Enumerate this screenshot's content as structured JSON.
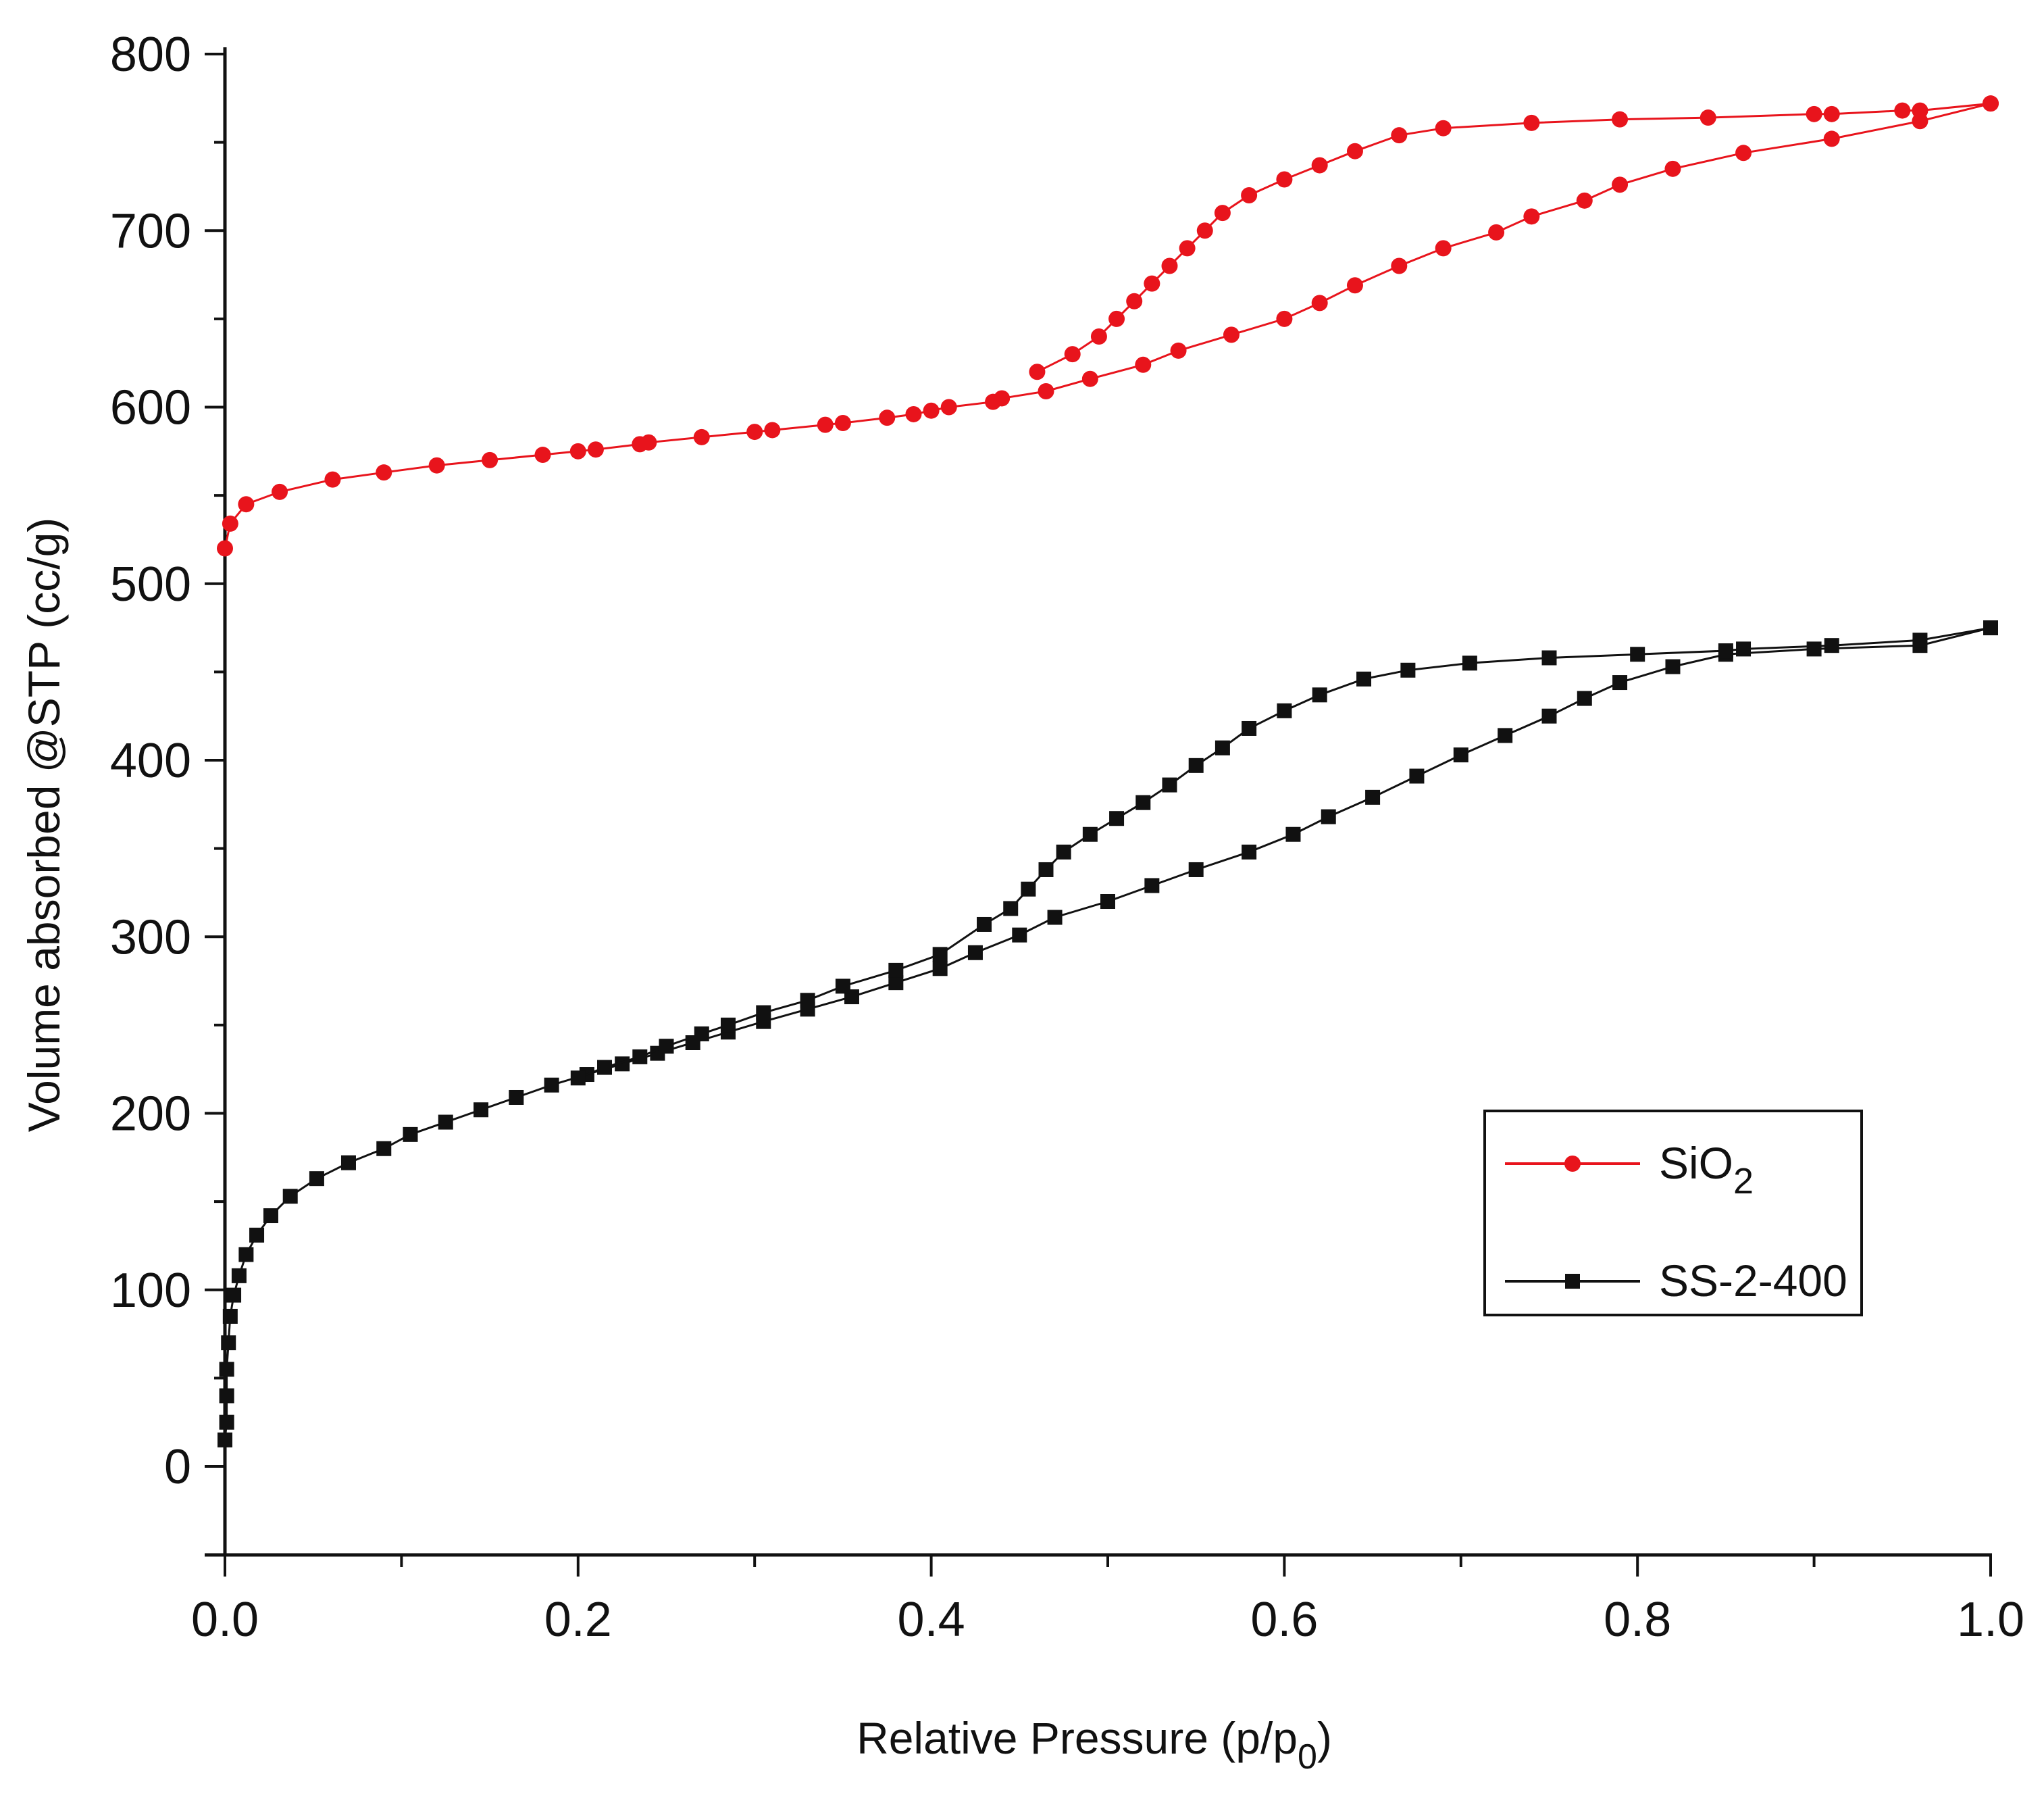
{
  "chart_data": {
    "type": "scatter",
    "title": "",
    "xlabel": "Relative Pressure (p/p0)",
    "xlabel_main": "Relative Pressure (p/p",
    "xlabel_sub": "0",
    "xlabel_close": ")",
    "ylabel": "Volume absorbed @STP (cc/g)",
    "xlim": [
      0.0,
      1.0
    ],
    "ylim": [
      -50,
      800
    ],
    "xticks": [
      "0.0",
      "0.2",
      "0.4",
      "0.6",
      "0.8",
      "1.0"
    ],
    "yticks": [
      "0",
      "100",
      "200",
      "300",
      "400",
      "500",
      "600",
      "700",
      "800"
    ],
    "grid": false,
    "legend_position": "lower-right",
    "series": [
      {
        "name": "SiO2",
        "legend_main": "SiO",
        "legend_sub": "2",
        "color": "#e8141c",
        "marker": "circle",
        "adsorption": {
          "x": [
            0.0,
            0.003,
            0.012,
            0.031,
            0.061,
            0.09,
            0.12,
            0.15,
            0.18,
            0.2,
            0.21,
            0.235,
            0.24,
            0.27,
            0.3,
            0.31,
            0.34,
            0.35,
            0.375,
            0.39,
            0.4,
            0.41,
            0.435,
            0.44,
            0.465,
            0.49,
            0.52,
            0.54,
            0.57,
            0.6,
            0.62,
            0.64,
            0.665,
            0.69,
            0.72,
            0.74,
            0.77,
            0.79,
            0.82,
            0.86,
            0.91,
            0.96,
            1.0
          ],
          "y": [
            520,
            534,
            545,
            552,
            559,
            563,
            567,
            570,
            573,
            575,
            576,
            579,
            580,
            583,
            586,
            587,
            590,
            591,
            594,
            596,
            598,
            600,
            603,
            605,
            609,
            616,
            624,
            632,
            641,
            650,
            659,
            669,
            680,
            690,
            699,
            708,
            717,
            726,
            735,
            744,
            752,
            762,
            772
          ]
        },
        "desorption": {
          "x": [
            1.0,
            0.96,
            0.95,
            0.91,
            0.9,
            0.84,
            0.79,
            0.74,
            0.69,
            0.665,
            0.64,
            0.62,
            0.6,
            0.58,
            0.565,
            0.555,
            0.545,
            0.535,
            0.525,
            0.515,
            0.505,
            0.495,
            0.48,
            0.46
          ],
          "y": [
            772,
            768,
            768,
            766,
            766,
            764,
            763,
            761,
            758,
            754,
            745,
            737,
            729,
            720,
            710,
            700,
            690,
            680,
            670,
            660,
            650,
            640,
            630,
            620
          ]
        }
      },
      {
        "name": "SS-2-400",
        "legend_main": "SS-2-400",
        "legend_sub": "",
        "color": "#111111",
        "marker": "square",
        "adsorption": {
          "x": [
            0.0,
            0.001,
            0.001,
            0.001,
            0.002,
            0.003,
            0.005,
            0.008,
            0.012,
            0.018,
            0.026,
            0.037,
            0.052,
            0.07,
            0.09,
            0.105,
            0.125,
            0.145,
            0.165,
            0.185,
            0.205,
            0.225,
            0.245,
            0.265,
            0.285,
            0.305,
            0.33,
            0.355,
            0.38,
            0.405,
            0.425,
            0.45,
            0.47,
            0.5,
            0.525,
            0.55,
            0.58,
            0.605,
            0.625,
            0.65,
            0.675,
            0.7,
            0.725,
            0.75,
            0.77,
            0.79,
            0.82,
            0.85,
            0.9,
            0.96,
            1.0
          ],
          "y": [
            15,
            25,
            40,
            55,
            70,
            85,
            97,
            108,
            120,
            131,
            142,
            153,
            163,
            172,
            180,
            188,
            195,
            202,
            209,
            216,
            222,
            228,
            234,
            240,
            246,
            252,
            259,
            266,
            274,
            282,
            291,
            301,
            311,
            320,
            329,
            338,
            348,
            358,
            368,
            379,
            391,
            403,
            414,
            425,
            435,
            444,
            453,
            460,
            463,
            465,
            475
          ]
        },
        "desorption": {
          "x": [
            1.0,
            0.96,
            0.91,
            0.86,
            0.85,
            0.8,
            0.75,
            0.705,
            0.67,
            0.645,
            0.62,
            0.6,
            0.58,
            0.565,
            0.55,
            0.535,
            0.52,
            0.505,
            0.49,
            0.475,
            0.465,
            0.455,
            0.445,
            0.43,
            0.405,
            0.38,
            0.35,
            0.33,
            0.305,
            0.285,
            0.27,
            0.25,
            0.235,
            0.215,
            0.2
          ],
          "y": [
            475,
            468,
            465,
            463,
            462,
            460,
            458,
            455,
            451,
            446,
            437,
            428,
            418,
            407,
            397,
            386,
            376,
            367,
            358,
            348,
            338,
            327,
            316,
            307,
            290,
            281,
            272,
            264,
            257,
            250,
            245,
            238,
            232,
            226,
            220
          ]
        }
      }
    ]
  }
}
